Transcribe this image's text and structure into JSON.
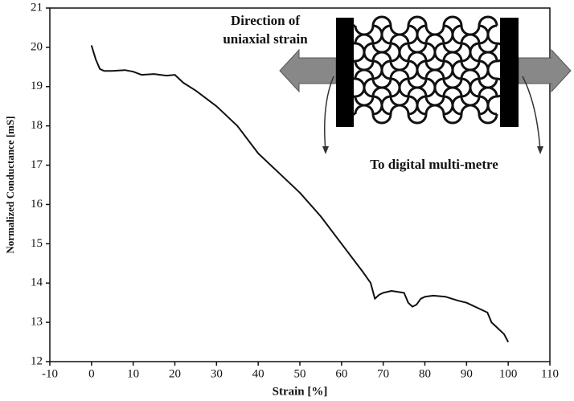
{
  "chart_data": {
    "type": "line",
    "xlabel": "Strain [%]",
    "ylabel": "Normalized Conductance [mS]",
    "annotations": [
      "Direction of",
      "uniaxial strain",
      "To digital multi-metre"
    ],
    "x": [
      0,
      1,
      2,
      3,
      5,
      8,
      10,
      12,
      15,
      18,
      20,
      22,
      25,
      30,
      35,
      40,
      45,
      50,
      55,
      60,
      65,
      67,
      68,
      69,
      70,
      72,
      75,
      76,
      77,
      78,
      79,
      80,
      82,
      85,
      88,
      90,
      93,
      95,
      96,
      97,
      99,
      100
    ],
    "values": [
      20.05,
      19.7,
      19.45,
      19.4,
      19.4,
      19.42,
      19.38,
      19.3,
      19.32,
      19.28,
      19.3,
      19.1,
      18.9,
      18.5,
      18.0,
      17.3,
      16.8,
      16.3,
      15.7,
      15.0,
      14.3,
      14.0,
      13.6,
      13.7,
      13.75,
      13.8,
      13.75,
      13.5,
      13.4,
      13.45,
      13.6,
      13.65,
      13.68,
      13.65,
      13.55,
      13.5,
      13.35,
      13.25,
      13.0,
      12.9,
      12.7,
      12.5
    ],
    "color": "#111111",
    "xlim": [
      -10,
      110
    ],
    "xticks": [
      -10,
      0,
      10,
      20,
      30,
      40,
      50,
      60,
      70,
      80,
      90,
      100,
      110
    ],
    "ylim": [
      12,
      21
    ],
    "yticks": [
      12,
      13,
      14,
      15,
      16,
      17,
      18,
      19,
      20,
      21
    ]
  }
}
